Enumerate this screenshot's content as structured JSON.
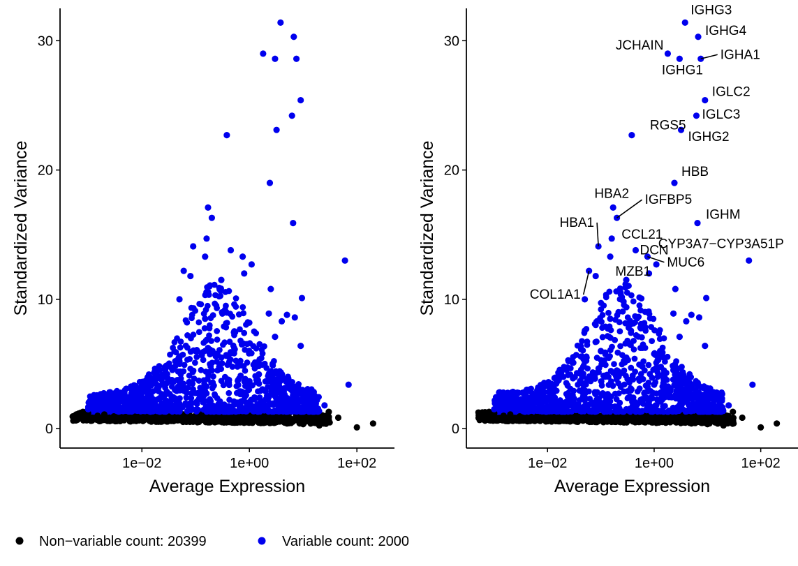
{
  "chart_data": [
    {
      "type": "scatter",
      "panel": "left",
      "title": "",
      "xlabel": "Average Expression",
      "ylabel": "Standardized Variance",
      "x_scale": "log10",
      "xlim": [
        0.0003,
        500
      ],
      "ylim": [
        -1.5,
        32.5
      ],
      "x_ticks": [
        {
          "value": 0.01,
          "label": "1e−02"
        },
        {
          "value": 1,
          "label": "1e+00"
        },
        {
          "value": 100,
          "label": "1e+02"
        }
      ],
      "y_ticks": [
        {
          "value": 0,
          "label": "0"
        },
        {
          "value": 10,
          "label": "10"
        },
        {
          "value": 20,
          "label": "20"
        },
        {
          "value": 30,
          "label": "30"
        }
      ],
      "grid": false,
      "series": [
        {
          "name": "Non−variable count: 20399",
          "color": "#000000",
          "points": [
            [
              0.0006,
              1.1
            ],
            [
              0.0008,
              1.3
            ],
            [
              0.001,
              1.2
            ],
            [
              0.0015,
              1.0
            ],
            [
              0.002,
              1.1
            ],
            [
              0.003,
              0.95
            ],
            [
              0.005,
              0.9
            ],
            [
              0.008,
              0.85
            ],
            [
              0.01,
              0.8
            ],
            [
              0.02,
              0.7
            ],
            [
              0.05,
              0.75
            ],
            [
              0.1,
              0.7
            ],
            [
              0.2,
              0.65
            ],
            [
              0.5,
              0.6
            ],
            [
              1,
              0.55
            ],
            [
              2,
              0.5
            ],
            [
              5,
              0.4
            ],
            [
              10,
              0.35
            ],
            [
              20,
              0.25
            ],
            [
              45,
              0.85
            ],
            [
              100,
              0.1
            ],
            [
              200,
              0.4
            ],
            [
              30,
              1.3
            ],
            [
              15,
              0.5
            ]
          ]
        },
        {
          "name": "Variable count: 2000",
          "color": "#0000ee",
          "points": [
            [
              3.8,
              31.4
            ],
            [
              6.7,
              30.3
            ],
            [
              1.8,
              29.0
            ],
            [
              3.0,
              28.6
            ],
            [
              7.5,
              28.6
            ],
            [
              9.0,
              25.4
            ],
            [
              6.2,
              24.2
            ],
            [
              3.2,
              23.1
            ],
            [
              0.38,
              22.7
            ],
            [
              2.4,
              19.0
            ],
            [
              0.17,
              17.1
            ],
            [
              0.2,
              16.3
            ],
            [
              6.5,
              15.9
            ],
            [
              0.16,
              14.7
            ],
            [
              0.09,
              14.1
            ],
            [
              0.45,
              13.8
            ],
            [
              0.75,
              13.3
            ],
            [
              1.1,
              12.7
            ],
            [
              60,
              13.0
            ],
            [
              0.15,
              13.3
            ],
            [
              0.06,
              12.2
            ],
            [
              0.8,
              12.0
            ],
            [
              0.08,
              11.8
            ],
            [
              0.3,
              11.5
            ],
            [
              2.5,
              10.8
            ],
            [
              9.5,
              10.1
            ],
            [
              0.05,
              10.0
            ],
            [
              0.15,
              8.5
            ],
            [
              2.3,
              8.9
            ],
            [
              5,
              8.8
            ],
            [
              7,
              8.6
            ],
            [
              4,
              8.3
            ],
            [
              3,
              7.1
            ],
            [
              9,
              6.4
            ],
            [
              70,
              3.4
            ],
            [
              0.02,
              4.6
            ],
            [
              0.05,
              5.2
            ],
            [
              0.1,
              6.0
            ],
            [
              0.3,
              5.5
            ],
            [
              0.6,
              4.8
            ],
            [
              1.5,
              4.2
            ],
            [
              3,
              3.6
            ],
            [
              6,
              3.0
            ],
            [
              12,
              2.4
            ],
            [
              25,
              1.8
            ],
            [
              0.01,
              3.3
            ],
            [
              0.005,
              2.3
            ],
            [
              0.003,
              2.0
            ],
            [
              0.002,
              1.6
            ],
            [
              0.001,
              1.5
            ],
            [
              0.008,
              2.7
            ],
            [
              0.03,
              3.9
            ],
            [
              0.2,
              4.5
            ],
            [
              0.4,
              3.8
            ],
            [
              1,
              3.4
            ],
            [
              2,
              2.9
            ],
            [
              4,
              2.4
            ],
            [
              8,
              2.0
            ],
            [
              15,
              1.6
            ]
          ]
        }
      ]
    },
    {
      "type": "scatter",
      "panel": "right",
      "title": "",
      "xlabel": "Average Expression",
      "ylabel": "Standardized Variance",
      "x_scale": "log10",
      "xlim": [
        0.0003,
        500
      ],
      "ylim": [
        -1.5,
        32.5
      ],
      "x_ticks": [
        {
          "value": 0.01,
          "label": "1e−02"
        },
        {
          "value": 1,
          "label": "1e+00"
        },
        {
          "value": 100,
          "label": "1e+02"
        }
      ],
      "y_ticks": [
        {
          "value": 0,
          "label": "0"
        },
        {
          "value": 10,
          "label": "10"
        },
        {
          "value": 20,
          "label": "20"
        },
        {
          "value": 30,
          "label": "30"
        }
      ],
      "grid": false,
      "series": [
        {
          "name": "Non−variable count: 20399",
          "color": "#000000",
          "points": [
            [
              0.0006,
              1.1
            ],
            [
              0.0008,
              1.3
            ],
            [
              0.001,
              1.2
            ],
            [
              0.0015,
              1.0
            ],
            [
              0.002,
              1.1
            ],
            [
              0.003,
              0.95
            ],
            [
              0.005,
              0.9
            ],
            [
              0.008,
              0.85
            ],
            [
              0.01,
              0.8
            ],
            [
              0.02,
              0.7
            ],
            [
              0.05,
              0.75
            ],
            [
              0.1,
              0.7
            ],
            [
              0.2,
              0.65
            ],
            [
              0.5,
              0.6
            ],
            [
              1,
              0.55
            ],
            [
              2,
              0.5
            ],
            [
              5,
              0.4
            ],
            [
              10,
              0.35
            ],
            [
              20,
              0.25
            ],
            [
              45,
              0.85
            ],
            [
              100,
              0.1
            ],
            [
              200,
              0.4
            ],
            [
              30,
              1.3
            ],
            [
              15,
              0.5
            ]
          ]
        },
        {
          "name": "Variable count: 2000",
          "color": "#0000ee",
          "points": [
            [
              3.8,
              31.4
            ],
            [
              6.7,
              30.3
            ],
            [
              1.8,
              29.0
            ],
            [
              3.0,
              28.6
            ],
            [
              7.5,
              28.6
            ],
            [
              9.0,
              25.4
            ],
            [
              6.2,
              24.2
            ],
            [
              3.2,
              23.1
            ],
            [
              0.38,
              22.7
            ],
            [
              2.4,
              19.0
            ],
            [
              0.17,
              17.1
            ],
            [
              0.2,
              16.3
            ],
            [
              6.5,
              15.9
            ],
            [
              0.16,
              14.7
            ],
            [
              0.09,
              14.1
            ],
            [
              0.45,
              13.8
            ],
            [
              0.75,
              13.3
            ],
            [
              1.1,
              12.7
            ],
            [
              60,
              13.0
            ],
            [
              0.15,
              13.3
            ],
            [
              0.06,
              12.2
            ],
            [
              0.8,
              12.0
            ],
            [
              0.08,
              11.8
            ],
            [
              0.3,
              11.5
            ],
            [
              2.5,
              10.8
            ],
            [
              9.5,
              10.1
            ],
            [
              0.05,
              10.0
            ],
            [
              0.15,
              8.5
            ],
            [
              2.3,
              8.9
            ],
            [
              5,
              8.8
            ],
            [
              7,
              8.6
            ],
            [
              4,
              8.3
            ],
            [
              3,
              7.1
            ],
            [
              9,
              6.4
            ],
            [
              70,
              3.4
            ],
            [
              0.02,
              4.6
            ],
            [
              0.05,
              5.2
            ],
            [
              0.1,
              6.0
            ],
            [
              0.3,
              5.5
            ],
            [
              0.6,
              4.8
            ],
            [
              1.5,
              4.2
            ],
            [
              3,
              3.6
            ],
            [
              6,
              3.0
            ],
            [
              12,
              2.4
            ],
            [
              25,
              1.8
            ],
            [
              0.01,
              3.3
            ],
            [
              0.005,
              2.3
            ],
            [
              0.003,
              2.0
            ],
            [
              0.002,
              1.6
            ],
            [
              0.001,
              1.5
            ],
            [
              0.008,
              2.7
            ],
            [
              0.03,
              3.9
            ],
            [
              0.2,
              4.5
            ],
            [
              0.4,
              3.8
            ],
            [
              1,
              3.4
            ],
            [
              2,
              2.9
            ],
            [
              4,
              2.4
            ],
            [
              8,
              2.0
            ],
            [
              15,
              1.6
            ]
          ]
        }
      ],
      "annotations": [
        {
          "label": "IGHG3",
          "x": 3.8,
          "y": 31.4
        },
        {
          "label": "IGHG4",
          "x": 6.7,
          "y": 30.3
        },
        {
          "label": "JCHAIN",
          "x": 1.8,
          "y": 29.0
        },
        {
          "label": "IGHA1",
          "x": 7.5,
          "y": 28.6
        },
        {
          "label": "IGHG1",
          "x": 3.0,
          "y": 28.6
        },
        {
          "label": "IGLC2",
          "x": 9.0,
          "y": 25.4
        },
        {
          "label": "IGLC3",
          "x": 6.2,
          "y": 24.2
        },
        {
          "label": "RGS5",
          "x": 0.38,
          "y": 22.7
        },
        {
          "label": "IGHG2",
          "x": 3.2,
          "y": 23.1
        },
        {
          "label": "HBB",
          "x": 2.4,
          "y": 19.0
        },
        {
          "label": "HBA2",
          "x": 0.17,
          "y": 17.1
        },
        {
          "label": "IGFBP5",
          "x": 0.2,
          "y": 16.3
        },
        {
          "label": "CCL21",
          "x": 0.16,
          "y": 14.7
        },
        {
          "label": "IGHM",
          "x": 6.5,
          "y": 15.9
        },
        {
          "label": "HBA1",
          "x": 0.09,
          "y": 14.1
        },
        {
          "label": "DCN",
          "x": 0.45,
          "y": 13.8
        },
        {
          "label": "CYP3A7−CYP3A51P",
          "x": 60,
          "y": 13.0
        },
        {
          "label": "MZB1",
          "x": 1.1,
          "y": 12.7
        },
        {
          "label": "MUC6",
          "x": 0.75,
          "y": 13.3
        },
        {
          "label": "COL1A1",
          "x": 0.06,
          "y": 12.2
        }
      ]
    }
  ]
}
